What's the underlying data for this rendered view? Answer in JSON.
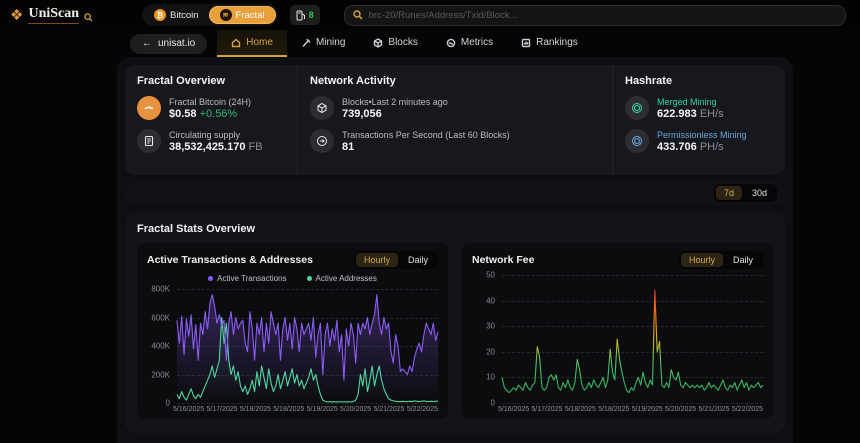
{
  "topbar": {
    "brand": "UniScan",
    "network_toggle": {
      "bitcoin": "Bitcoin",
      "fractal": "Fractal"
    },
    "gas": {
      "value": "8"
    },
    "search_placeholder": "brc-20/Runes/Address/Txid/Block..."
  },
  "nav": {
    "back": "unisat.io",
    "back_arrow": "←",
    "tabs": [
      {
        "label": "Home",
        "active": true
      },
      {
        "label": "Mining",
        "active": false
      },
      {
        "label": "Blocks",
        "active": false
      },
      {
        "label": "Metrics",
        "active": false
      },
      {
        "label": "Rankings",
        "active": false
      }
    ]
  },
  "overview": {
    "title": "Fractal Overview",
    "price_label": "Fractal Bitcoin (24H)",
    "price": "$0.58",
    "price_change": "+0.56%",
    "supply_label": "Circulating supply",
    "supply": "38,532,425.170",
    "supply_unit": "FB"
  },
  "network_activity": {
    "title": "Network Activity",
    "blocks_label": "Blocks•Last 2 minutes ago",
    "blocks_value": "739,056",
    "tps_label": "Transactions Per Second (Last 60 Blocks)",
    "tps_value": "81"
  },
  "hashrate": {
    "title": "Hashrate",
    "merged_label": "Merged Mining",
    "merged_value": "622.983",
    "merged_unit": "EH/s",
    "permissionless_label": "Permissionless Mining",
    "permissionless_value": "433.706",
    "permissionless_unit": "PH/s"
  },
  "range_toggle": {
    "options": [
      "7d",
      "30d"
    ],
    "selected": "7d"
  },
  "stats": {
    "title": "Fractal Stats Overview"
  },
  "chart_data": [
    {
      "type": "line",
      "title": "Active Transactions & Addresses",
      "toggle": [
        "Hourly",
        "Daily"
      ],
      "toggle_selected": "Hourly",
      "interval": "hourly",
      "x_labels": [
        "5/16/2025",
        "5/17/2025",
        "5/18/2025",
        "5/18/2025",
        "5/19/2025",
        "5/20/2025",
        "5/21/2025",
        "5/22/2025"
      ],
      "y_ticks": [
        "800K",
        "600K",
        "400K",
        "200K",
        "0"
      ],
      "ylim": [
        0,
        800
      ],
      "values_unit": "K",
      "grid": "dashed",
      "legend_position": "top-center",
      "series": [
        {
          "name": "Active Transactions",
          "color": "#8b5cf6",
          "fill_alpha": 0.32,
          "values": [
            580,
            420,
            610,
            340,
            590,
            470,
            620,
            380,
            550,
            300,
            560,
            480,
            640,
            520,
            700,
            760,
            680,
            560,
            620,
            540,
            580,
            300,
            560,
            640,
            480,
            600,
            520,
            560,
            580,
            420,
            360,
            640,
            520,
            300,
            560,
            480,
            600,
            360,
            560,
            420,
            640,
            560,
            480,
            560,
            300,
            520,
            600,
            440,
            560,
            380,
            600,
            520,
            360,
            560,
            480,
            520,
            560,
            440,
            600,
            320,
            480,
            560,
            200,
            480,
            560,
            400,
            520,
            440,
            580,
            360,
            480,
            160,
            520,
            400,
            560,
            480,
            280,
            560,
            480,
            560,
            520,
            600,
            480,
            560,
            620,
            760,
            560,
            480,
            600,
            520,
            560,
            360,
            280,
            480,
            400,
            220,
            240,
            220,
            200,
            260,
            220,
            320,
            380,
            420,
            360,
            480,
            560,
            520,
            480,
            560,
            440,
            500
          ]
        },
        {
          "name": "Active Addresses",
          "color": "#52d6a0",
          "fill_alpha": 0.12,
          "values": [
            60,
            30,
            80,
            40,
            20,
            60,
            100,
            50,
            30,
            60,
            40,
            80,
            120,
            160,
            200,
            260,
            180,
            240,
            300,
            600,
            420,
            560,
            300,
            200,
            260,
            160,
            220,
            120,
            80,
            120,
            60,
            100,
            160,
            80,
            220,
            120,
            260,
            180,
            100,
            240,
            140,
            80,
            120,
            200,
            100,
            160,
            220,
            120,
            180,
            240,
            140,
            200,
            120,
            160,
            100,
            140,
            180,
            240,
            160,
            200,
            120,
            60,
            20,
            10,
            8,
            8,
            8,
            8,
            8,
            8,
            8,
            8,
            8,
            8,
            8,
            10,
            20,
            60,
            200,
            120,
            240,
            80,
            160,
            260,
            120,
            200,
            260,
            160,
            100,
            60,
            30,
            20,
            15,
            12,
            10,
            10,
            12,
            10,
            10,
            12,
            10,
            15,
            12,
            10,
            12,
            15,
            12,
            10,
            12,
            10,
            12,
            14
          ]
        }
      ]
    },
    {
      "type": "line",
      "title": "Network Fee",
      "toggle": [
        "Hourly",
        "Daily"
      ],
      "toggle_selected": "Hourly",
      "interval": "hourly",
      "x_labels": [
        "5/16/2025",
        "5/17/2025",
        "5/18/2025",
        "5/18/2025",
        "5/19/2025",
        "5/20/2025",
        "5/21/2025",
        "5/22/2025"
      ],
      "y_ticks": [
        "50",
        "40",
        "30",
        "20",
        "10",
        "0"
      ],
      "ylim": [
        0,
        50
      ],
      "values_unit": "sats/vB",
      "grid": "dashed",
      "series": [
        {
          "name": "Network Fee",
          "color": "gradient-fee",
          "fill_alpha": 0.08,
          "values": [
            10,
            6,
            5,
            4,
            5,
            6,
            5,
            7,
            6,
            5,
            8,
            6,
            5,
            7,
            8,
            22,
            18,
            6,
            5,
            6,
            10,
            11,
            9,
            11,
            6,
            5,
            8,
            6,
            9,
            6,
            5,
            8,
            17,
            13,
            7,
            5,
            6,
            8,
            6,
            9,
            7,
            6,
            8,
            10,
            6,
            9,
            21,
            12,
            9,
            25,
            17,
            12,
            8,
            5,
            4,
            6,
            5,
            8,
            10,
            7,
            12,
            8,
            6,
            9,
            7,
            44,
            20,
            24,
            7,
            6,
            8,
            6,
            13,
            10,
            9,
            12,
            7,
            6,
            8,
            7,
            6,
            7,
            6,
            7,
            6,
            7,
            5,
            6,
            8,
            6,
            7,
            6,
            5,
            7,
            9,
            6,
            5,
            7,
            6,
            8,
            5,
            7,
            9,
            6,
            8,
            5,
            7,
            6,
            7,
            8,
            6,
            7
          ]
        }
      ]
    }
  ],
  "colors": {
    "accent_gold": "#d4a33c",
    "fractal_orange": "#e9a03a",
    "positive_green": "#2eb872",
    "merged_green": "#35d69e",
    "permissionless_blue": "#6aa6dd",
    "transactions_purple": "#8b5cf6",
    "addresses_green": "#52d6a0",
    "fee_gradient": [
      "#2fae5e",
      "#eab308",
      "#f97316",
      "#e0402d"
    ]
  }
}
